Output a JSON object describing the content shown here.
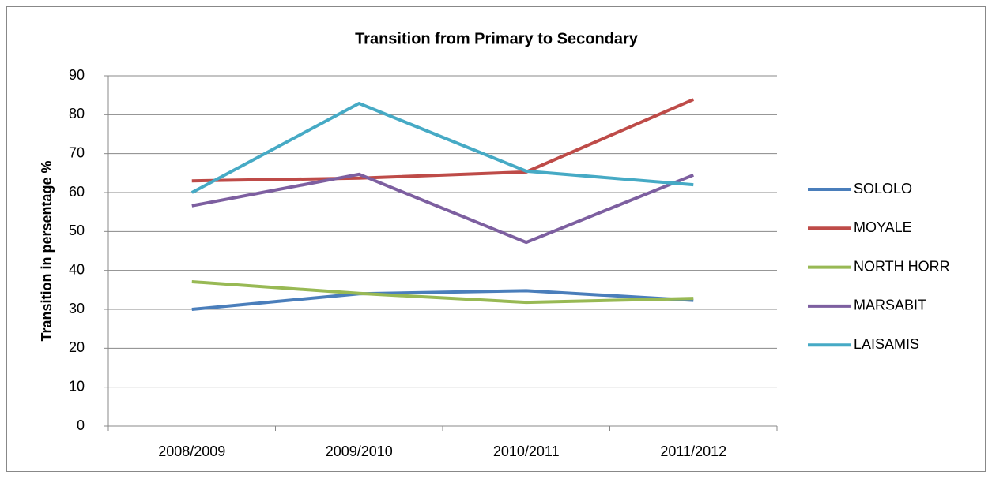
{
  "chart_data": {
    "type": "line",
    "title": "Transition from Primary to Secondary",
    "y_label": "Transition in persentage %",
    "categories": [
      "2008/2009",
      "2009/2010",
      "2010/2011",
      "2011/2012"
    ],
    "series": [
      {
        "name": "SOLOLO",
        "color": "#4a7ebb",
        "values": [
          30,
          34,
          34.8,
          32.3
        ]
      },
      {
        "name": "MOYALE",
        "color": "#be4b48",
        "values": [
          63,
          63.7,
          65.3,
          83.9
        ]
      },
      {
        "name": "NORTH HORR",
        "color": "#98b954",
        "values": [
          37.1,
          34.1,
          31.8,
          32.8
        ]
      },
      {
        "name": "MARSABIT",
        "color": "#7d5fa0",
        "values": [
          56.6,
          64.7,
          47.2,
          64.5
        ]
      },
      {
        "name": "LAISAMIS",
        "color": "#46aac5",
        "values": [
          60,
          82.9,
          65.5,
          62
        ]
      }
    ],
    "ylim": [
      0,
      90
    ],
    "yticks": [
      0,
      10,
      20,
      30,
      40,
      50,
      60,
      70,
      80,
      90
    ],
    "grid": true,
    "legend": "right"
  }
}
